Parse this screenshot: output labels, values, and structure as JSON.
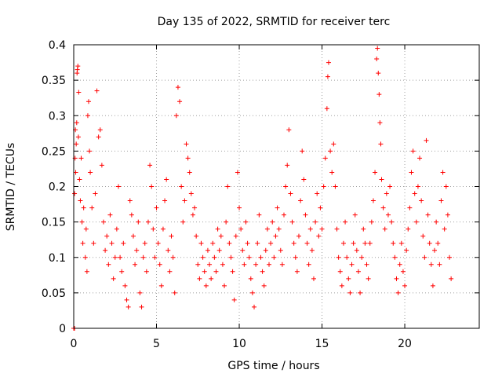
{
  "chart_data": {
    "type": "scatter",
    "title": "Day 135 of 2022, SRMTID for receiver terc",
    "xlabel": "GPS time / hours",
    "ylabel": "SRMTID / TECUs",
    "xlim": [
      0,
      24.5
    ],
    "ylim": [
      0,
      0.4
    ],
    "xticks": [
      0,
      5,
      10,
      15,
      20
    ],
    "yticks": [
      0,
      0.05,
      0.1,
      0.15,
      0.2,
      0.25,
      0.3,
      0.35,
      0.4
    ],
    "marker": "plus",
    "grid": true,
    "series": [
      {
        "name": "SRMTID",
        "color": "#ff0000",
        "points": [
          [
            0.0,
            0.0
          ],
          [
            0.05,
            0.0
          ],
          [
            0.05,
            0.19
          ],
          [
            0.08,
            0.24
          ],
          [
            0.1,
            0.28
          ],
          [
            0.12,
            0.22
          ],
          [
            0.15,
            0.26
          ],
          [
            0.18,
            0.29
          ],
          [
            0.2,
            0.36
          ],
          [
            0.22,
            0.365
          ],
          [
            0.25,
            0.37
          ],
          [
            0.28,
            0.27
          ],
          [
            0.3,
            0.333
          ],
          [
            0.35,
            0.21
          ],
          [
            0.4,
            0.18
          ],
          [
            0.45,
            0.24
          ],
          [
            0.5,
            0.15
          ],
          [
            0.55,
            0.12
          ],
          [
            0.6,
            0.17
          ],
          [
            0.7,
            0.1
          ],
          [
            0.75,
            0.14
          ],
          [
            0.8,
            0.08
          ],
          [
            0.85,
            0.3
          ],
          [
            0.9,
            0.32
          ],
          [
            0.95,
            0.25
          ],
          [
            1.0,
            0.22
          ],
          [
            1.1,
            0.17
          ],
          [
            1.2,
            0.12
          ],
          [
            1.3,
            0.19
          ],
          [
            1.4,
            0.335
          ],
          [
            1.5,
            0.27
          ],
          [
            1.6,
            0.28
          ],
          [
            1.7,
            0.23
          ],
          [
            1.8,
            0.15
          ],
          [
            1.9,
            0.11
          ],
          [
            2.0,
            0.13
          ],
          [
            2.1,
            0.09
          ],
          [
            2.2,
            0.16
          ],
          [
            2.3,
            0.12
          ],
          [
            2.4,
            0.07
          ],
          [
            2.5,
            0.1
          ],
          [
            2.6,
            0.14
          ],
          [
            2.7,
            0.2
          ],
          [
            2.8,
            0.1
          ],
          [
            2.9,
            0.08
          ],
          [
            3.0,
            0.12
          ],
          [
            3.1,
            0.06
          ],
          [
            3.2,
            0.04
          ],
          [
            3.3,
            0.03
          ],
          [
            3.4,
            0.18
          ],
          [
            3.5,
            0.16
          ],
          [
            3.6,
            0.13
          ],
          [
            3.7,
            0.09
          ],
          [
            3.8,
            0.11
          ],
          [
            3.9,
            0.15
          ],
          [
            4.0,
            0.05
          ],
          [
            4.1,
            0.03
          ],
          [
            4.2,
            0.1
          ],
          [
            4.3,
            0.12
          ],
          [
            4.4,
            0.08
          ],
          [
            4.5,
            0.15
          ],
          [
            4.6,
            0.23
          ],
          [
            4.7,
            0.2
          ],
          [
            4.8,
            0.14
          ],
          [
            4.9,
            0.1
          ],
          [
            5.0,
            0.17
          ],
          [
            5.1,
            0.12
          ],
          [
            5.2,
            0.09
          ],
          [
            5.3,
            0.06
          ],
          [
            5.4,
            0.14
          ],
          [
            5.5,
            0.18
          ],
          [
            5.6,
            0.21
          ],
          [
            5.7,
            0.11
          ],
          [
            5.8,
            0.08
          ],
          [
            5.9,
            0.13
          ],
          [
            6.0,
            0.1
          ],
          [
            6.1,
            0.05
          ],
          [
            6.2,
            0.3
          ],
          [
            6.3,
            0.34
          ],
          [
            6.4,
            0.32
          ],
          [
            6.5,
            0.2
          ],
          [
            6.6,
            0.15
          ],
          [
            6.7,
            0.18
          ],
          [
            6.8,
            0.26
          ],
          [
            6.9,
            0.24
          ],
          [
            7.0,
            0.22
          ],
          [
            7.1,
            0.19
          ],
          [
            7.2,
            0.16
          ],
          [
            7.3,
            0.17
          ],
          [
            7.4,
            0.13
          ],
          [
            7.5,
            0.09
          ],
          [
            7.6,
            0.07
          ],
          [
            7.7,
            0.12
          ],
          [
            7.8,
            0.1
          ],
          [
            7.9,
            0.08
          ],
          [
            8.0,
            0.06
          ],
          [
            8.1,
            0.11
          ],
          [
            8.2,
            0.09
          ],
          [
            8.3,
            0.07
          ],
          [
            8.4,
            0.12
          ],
          [
            8.5,
            0.1
          ],
          [
            8.6,
            0.08
          ],
          [
            8.7,
            0.14
          ],
          [
            8.8,
            0.11
          ],
          [
            8.9,
            0.13
          ],
          [
            9.0,
            0.09
          ],
          [
            9.1,
            0.06
          ],
          [
            9.2,
            0.15
          ],
          [
            9.3,
            0.2
          ],
          [
            9.4,
            0.12
          ],
          [
            9.5,
            0.1
          ],
          [
            9.6,
            0.08
          ],
          [
            9.7,
            0.04
          ],
          [
            9.8,
            0.13
          ],
          [
            9.9,
            0.22
          ],
          [
            10.0,
            0.17
          ],
          [
            10.1,
            0.14
          ],
          [
            10.2,
            0.11
          ],
          [
            10.3,
            0.09
          ],
          [
            10.4,
            0.15
          ],
          [
            10.5,
            0.12
          ],
          [
            10.6,
            0.1
          ],
          [
            10.7,
            0.07
          ],
          [
            10.8,
            0.05
          ],
          [
            10.9,
            0.03
          ],
          [
            11.0,
            0.09
          ],
          [
            11.1,
            0.12
          ],
          [
            11.2,
            0.16
          ],
          [
            11.3,
            0.1
          ],
          [
            11.4,
            0.08
          ],
          [
            11.5,
            0.06
          ],
          [
            11.6,
            0.11
          ],
          [
            11.7,
            0.14
          ],
          [
            11.8,
            0.09
          ],
          [
            11.9,
            0.12
          ],
          [
            12.0,
            0.15
          ],
          [
            12.1,
            0.1
          ],
          [
            12.2,
            0.13
          ],
          [
            12.3,
            0.17
          ],
          [
            12.4,
            0.14
          ],
          [
            12.5,
            0.11
          ],
          [
            12.6,
            0.09
          ],
          [
            12.7,
            0.16
          ],
          [
            12.8,
            0.2
          ],
          [
            12.9,
            0.23
          ],
          [
            13.0,
            0.28
          ],
          [
            13.1,
            0.19
          ],
          [
            13.2,
            0.15
          ],
          [
            13.3,
            0.12
          ],
          [
            13.4,
            0.1
          ],
          [
            13.5,
            0.08
          ],
          [
            13.6,
            0.13
          ],
          [
            13.7,
            0.18
          ],
          [
            13.8,
            0.25
          ],
          [
            13.9,
            0.21
          ],
          [
            14.0,
            0.16
          ],
          [
            14.1,
            0.12
          ],
          [
            14.2,
            0.09
          ],
          [
            14.3,
            0.14
          ],
          [
            14.4,
            0.11
          ],
          [
            14.5,
            0.07
          ],
          [
            14.6,
            0.15
          ],
          [
            14.7,
            0.19
          ],
          [
            14.8,
            0.13
          ],
          [
            14.9,
            0.17
          ],
          [
            15.0,
            0.14
          ],
          [
            15.1,
            0.2
          ],
          [
            15.2,
            0.24
          ],
          [
            15.3,
            0.31
          ],
          [
            15.35,
            0.355
          ],
          [
            15.4,
            0.375
          ],
          [
            15.5,
            0.25
          ],
          [
            15.6,
            0.22
          ],
          [
            15.7,
            0.26
          ],
          [
            15.8,
            0.2
          ],
          [
            15.9,
            0.14
          ],
          [
            16.0,
            0.1
          ],
          [
            16.1,
            0.08
          ],
          [
            16.2,
            0.06
          ],
          [
            16.3,
            0.12
          ],
          [
            16.4,
            0.15
          ],
          [
            16.5,
            0.1
          ],
          [
            16.6,
            0.07
          ],
          [
            16.7,
            0.05
          ],
          [
            16.8,
            0.09
          ],
          [
            16.9,
            0.12
          ],
          [
            17.0,
            0.16
          ],
          [
            17.1,
            0.11
          ],
          [
            17.2,
            0.08
          ],
          [
            17.3,
            0.05
          ],
          [
            17.4,
            0.1
          ],
          [
            17.5,
            0.14
          ],
          [
            17.6,
            0.12
          ],
          [
            17.7,
            0.09
          ],
          [
            17.8,
            0.07
          ],
          [
            17.9,
            0.12
          ],
          [
            18.0,
            0.15
          ],
          [
            18.1,
            0.18
          ],
          [
            18.2,
            0.22
          ],
          [
            18.3,
            0.38
          ],
          [
            18.35,
            0.395
          ],
          [
            18.4,
            0.36
          ],
          [
            18.45,
            0.33
          ],
          [
            18.5,
            0.29
          ],
          [
            18.55,
            0.26
          ],
          [
            18.6,
            0.21
          ],
          [
            18.7,
            0.17
          ],
          [
            18.8,
            0.14
          ],
          [
            18.9,
            0.19
          ],
          [
            19.0,
            0.16
          ],
          [
            19.1,
            0.2
          ],
          [
            19.2,
            0.15
          ],
          [
            19.3,
            0.12
          ],
          [
            19.4,
            0.1
          ],
          [
            19.5,
            0.07
          ],
          [
            19.6,
            0.05
          ],
          [
            19.7,
            0.09
          ],
          [
            19.8,
            0.12
          ],
          [
            19.9,
            0.08
          ],
          [
            20.0,
            0.06
          ],
          [
            20.1,
            0.11
          ],
          [
            20.2,
            0.14
          ],
          [
            20.3,
            0.17
          ],
          [
            20.4,
            0.22
          ],
          [
            20.5,
            0.25
          ],
          [
            20.6,
            0.19
          ],
          [
            20.7,
            0.15
          ],
          [
            20.8,
            0.2
          ],
          [
            20.9,
            0.24
          ],
          [
            21.0,
            0.18
          ],
          [
            21.1,
            0.13
          ],
          [
            21.2,
            0.1
          ],
          [
            21.3,
            0.265
          ],
          [
            21.4,
            0.16
          ],
          [
            21.5,
            0.12
          ],
          [
            21.6,
            0.09
          ],
          [
            21.7,
            0.06
          ],
          [
            21.8,
            0.11
          ],
          [
            21.9,
            0.15
          ],
          [
            22.0,
            0.12
          ],
          [
            22.1,
            0.09
          ],
          [
            22.2,
            0.18
          ],
          [
            22.3,
            0.22
          ],
          [
            22.4,
            0.14
          ],
          [
            22.5,
            0.2
          ],
          [
            22.6,
            0.16
          ],
          [
            22.7,
            0.1
          ],
          [
            22.8,
            0.07
          ]
        ]
      }
    ]
  }
}
